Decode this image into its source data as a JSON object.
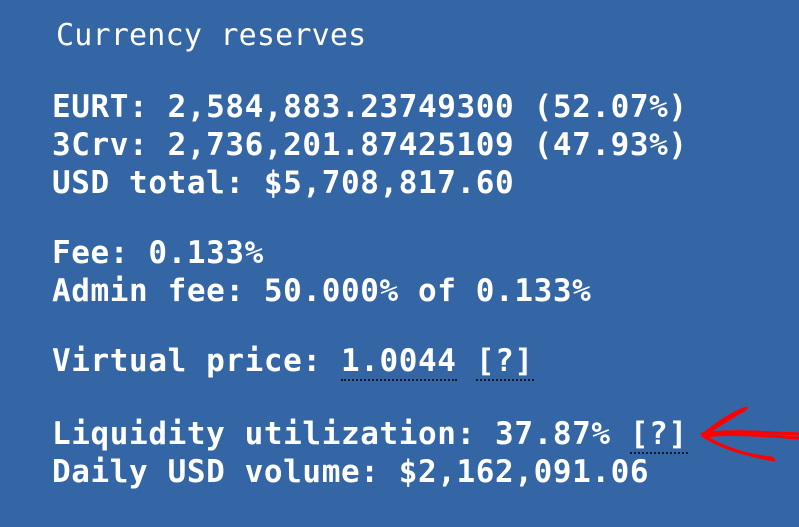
{
  "title": "Currency reserves",
  "reserves": {
    "eurt": "EURT: 2,584,883.23749300 (52.07%)",
    "crv": "3Crv: 2,736,201.87425109 (47.93%)",
    "usd_total": "USD total: $5,708,817.60"
  },
  "fees": {
    "fee": "Fee: 0.133%",
    "admin_fee": "Admin fee: 50.000% of 0.133%"
  },
  "virtual_price": {
    "label": "Virtual price: ",
    "value": "1.0044",
    "help": "[?]"
  },
  "liquidity": {
    "label": "Liquidity utilization: 37.87% ",
    "help": "[?]"
  },
  "volume": {
    "text": "Daily USD volume: $2,162,091.06"
  },
  "annotation": {
    "arrow_icon": "red-hand-drawn-arrow-icon",
    "arrow_color": "#ff0000"
  },
  "colors": {
    "background": "#3465a4",
    "text": "#ffffff"
  }
}
